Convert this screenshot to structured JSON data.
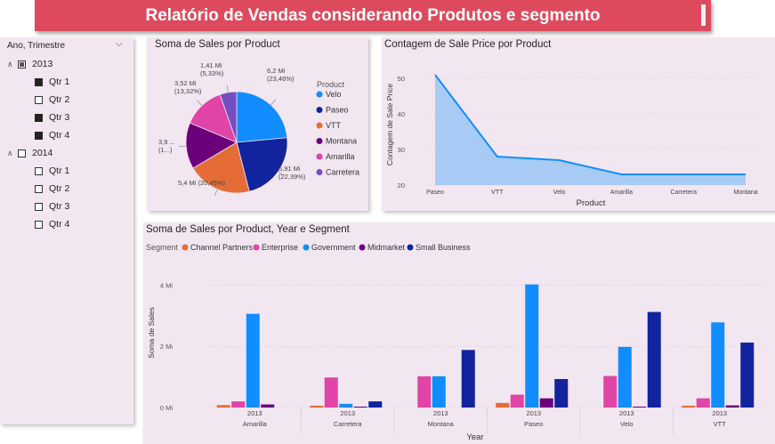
{
  "report_title": "Relatório de Vendas considerando Produtos e segmento",
  "slicer": {
    "header": "Ano, Trimestre",
    "years": [
      {
        "label": "2013",
        "state": "partial",
        "quarters": [
          {
            "label": "Qtr 1",
            "checked": true
          },
          {
            "label": "Qtr 2",
            "checked": false
          },
          {
            "label": "Qtr 3",
            "checked": true
          },
          {
            "label": "Qtr 4",
            "checked": true
          }
        ]
      },
      {
        "label": "2014",
        "state": "unchecked",
        "quarters": [
          {
            "label": "Qtr 1",
            "checked": false
          },
          {
            "label": "Qtr 2",
            "checked": false
          },
          {
            "label": "Qtr 3",
            "checked": false
          },
          {
            "label": "Qtr 4",
            "checked": false
          }
        ]
      }
    ]
  },
  "colors": {
    "Velo": "#118dff",
    "Paseo": "#12239e",
    "VTT": "#e66c37",
    "Montana": "#6b007b",
    "Amarilla": "#e044a7",
    "Carretera": "#744ec2",
    "Channel Partners": "#e66c37",
    "Enterprise": "#e044a7",
    "Government": "#118dff",
    "Midmarket": "#6b007b",
    "Small Business": "#12239e",
    "area_line": "#118dff",
    "area_fill": "#9fc8f5"
  },
  "chart_data": [
    {
      "type": "pie",
      "title": "Soma de Sales por Product",
      "legend_title": "Product",
      "legend": [
        "Velo",
        "Paseo",
        "VTT",
        "Montana",
        "Amarilla",
        "Carretera"
      ],
      "slices": [
        {
          "label": "Velo",
          "value": 6.2,
          "label_text": "6,2 Mi",
          "pct_text": "(23,46%)"
        },
        {
          "label": "Paseo",
          "value": 5.91,
          "label_text": "5,91 Mi",
          "pct_text": "(22,39%)"
        },
        {
          "label": "VTT",
          "value": 5.4,
          "label_text": "5,4 Mi (20,45%)",
          "pct_text": ""
        },
        {
          "label": "Montana",
          "value": 3.9,
          "label_text": "3,9 ...",
          "pct_text": "(1...)"
        },
        {
          "label": "Amarilla",
          "value": 3.52,
          "label_text": "3,52 Mi",
          "pct_text": "(13,32%)"
        },
        {
          "label": "Carretera",
          "value": 1.41,
          "label_text": "1,41 Mi",
          "pct_text": "(5,33%)"
        }
      ]
    },
    {
      "type": "area",
      "title": "Contagem de Sale Price por Product",
      "xlabel": "Product",
      "ylabel": "Contagem de Sale Price",
      "categories": [
        "Paseo",
        "VTT",
        "Velo",
        "Amarilla",
        "Carretera",
        "Montana"
      ],
      "values": [
        51,
        28,
        27,
        23,
        23,
        23
      ],
      "ylim": [
        20,
        55
      ],
      "yticks": [
        20,
        30,
        40,
        50
      ]
    },
    {
      "type": "bar",
      "title": "Soma de Sales por Product, Year e Segment",
      "legend_title": "Segment",
      "xlabel": "Year",
      "ylabel": "Soma de Sales",
      "categories": [
        "Amarilla",
        "Carretera",
        "Montana",
        "Paseo",
        "Velo",
        "VTT"
      ],
      "year_labels": [
        "2013",
        "2013",
        "2013",
        "2013",
        "2013",
        "2013"
      ],
      "ylim": [
        0,
        4.3
      ],
      "yticks": [
        {
          "value": 0,
          "label": "0 Mi"
        },
        {
          "value": 2,
          "label": "2 Mi"
        },
        {
          "value": 4,
          "label": "4 Mi"
        }
      ],
      "series": [
        {
          "name": "Channel Partners",
          "values": [
            0.08,
            0.06,
            0.0,
            0.15,
            0.0,
            0.06
          ]
        },
        {
          "name": "Enterprise",
          "values": [
            0.2,
            0.98,
            1.02,
            0.42,
            1.03,
            0.3
          ]
        },
        {
          "name": "Government",
          "values": [
            3.06,
            0.12,
            1.02,
            4.02,
            1.98,
            2.78
          ]
        },
        {
          "name": "Midmarket",
          "values": [
            0.1,
            0.03,
            0.0,
            0.3,
            0.03,
            0.07
          ]
        },
        {
          "name": "Small Business",
          "values": [
            0.0,
            0.2,
            1.88,
            0.93,
            3.12,
            2.12
          ]
        }
      ]
    }
  ]
}
